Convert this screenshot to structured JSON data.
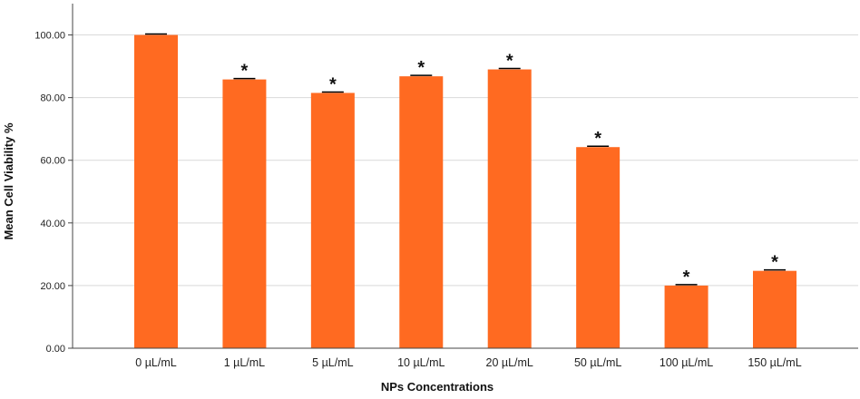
{
  "chart_data": {
    "type": "bar",
    "title": "",
    "xlabel": "NPs Concentrations",
    "ylabel": "Mean Cell Viability %",
    "categories": [
      "0 µL/mL",
      "1 µL/mL",
      "5 µL/mL",
      "10 µL/mL",
      "20 µL/mL",
      "50 µL/mL",
      "100 µL/mL",
      "150 µL/mL"
    ],
    "values": [
      100.0,
      85.8,
      81.5,
      86.8,
      89.0,
      64.2,
      20.0,
      24.7
    ],
    "significance": [
      "",
      "*",
      "*",
      "*",
      "*",
      "*",
      "*",
      "*"
    ],
    "yticks": [
      "0.00",
      "20.00",
      "40.00",
      "60.00",
      "80.00",
      "100.00"
    ],
    "ylim": [
      0,
      110
    ],
    "grid": true,
    "bar_color": "#FF6A21",
    "error_bar_color": "#000000",
    "grid_color": "#D9D9D9",
    "axis_color": "#444444"
  }
}
